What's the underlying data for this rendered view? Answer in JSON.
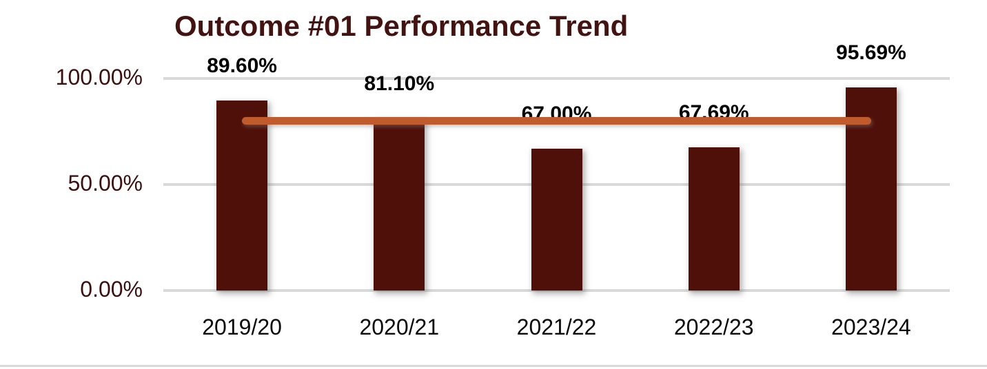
{
  "window": {
    "background": "#ffffff"
  },
  "chart": {
    "title": "Outcome #01 Performance Trend",
    "colors": {
      "title": "#421310",
      "bar": "#50100a",
      "target_line": "#bf5b2c",
      "gridline": "#d9d9d9",
      "y_tick_label": "#3a1110",
      "x_tick_label": "#0b0b0b",
      "data_label": "#000000",
      "bottom_divider": "#d9d9d9"
    }
  },
  "chart_data": {
    "type": "bar",
    "title": "Outcome #01 Performance Trend",
    "categories": [
      "2019/20",
      "2020/21",
      "2021/22",
      "2022/23",
      "2023/24"
    ],
    "series": [
      {
        "name": "performance",
        "type": "bar",
        "values": [
          89.6,
          81.1,
          67.0,
          67.69,
          95.69
        ],
        "data_labels": [
          "89.60%",
          "81.10%",
          "67.00%",
          "67.69%",
          "95.69%"
        ]
      },
      {
        "name": "target-line",
        "type": "line",
        "values": [
          80,
          80,
          80,
          80,
          80
        ]
      }
    ],
    "ylim": [
      0,
      100
    ],
    "y_ticks": [
      {
        "label": "100.00%",
        "value": 100
      },
      {
        "label": "50.00%",
        "value": 50
      },
      {
        "label": "0.00%",
        "value": 0
      }
    ],
    "grid": true,
    "legend": "none"
  }
}
